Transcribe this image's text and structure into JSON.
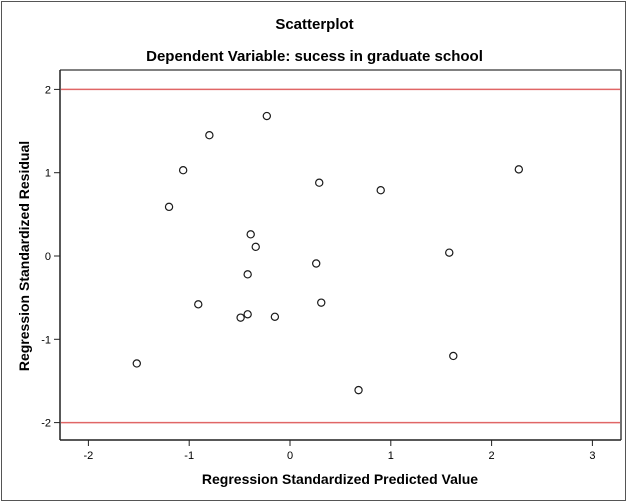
{
  "chart_data": {
    "type": "scatter",
    "title": "Scatterplot",
    "subtitle": "Dependent Variable: sucess in graduate school",
    "xlabel": "Regression Standardized Predicted Value",
    "ylabel": "Regression Standardized Residual",
    "xlim": [
      -2.28,
      3.3
    ],
    "ylim": [
      -2.22,
      2.23
    ],
    "x_ticks": [
      -2,
      -1,
      0,
      1,
      2,
      3
    ],
    "y_ticks": [
      -2,
      -1,
      0,
      1,
      2
    ],
    "grid": false,
    "reference_lines": [
      {
        "axis": "y",
        "value": 2,
        "color": "#e06666"
      },
      {
        "axis": "y",
        "value": -2,
        "color": "#e06666"
      }
    ],
    "marker": "open-circle",
    "points": [
      {
        "x": -0.23,
        "y": 1.68
      },
      {
        "x": -0.8,
        "y": 1.45
      },
      {
        "x": -1.06,
        "y": 1.03
      },
      {
        "x": -1.2,
        "y": 0.59
      },
      {
        "x": 0.29,
        "y": 0.88
      },
      {
        "x": 0.9,
        "y": 0.79
      },
      {
        "x": 2.27,
        "y": 1.04
      },
      {
        "x": -0.39,
        "y": 0.26
      },
      {
        "x": -0.34,
        "y": 0.11
      },
      {
        "x": 1.58,
        "y": 0.04
      },
      {
        "x": 0.26,
        "y": -0.09
      },
      {
        "x": -0.42,
        "y": -0.22
      },
      {
        "x": 0.31,
        "y": -0.56
      },
      {
        "x": -0.91,
        "y": -0.58
      },
      {
        "x": -0.42,
        "y": -0.7
      },
      {
        "x": -0.49,
        "y": -0.74
      },
      {
        "x": -0.15,
        "y": -0.73
      },
      {
        "x": 1.62,
        "y": -1.2
      },
      {
        "x": -1.52,
        "y": -1.29
      },
      {
        "x": 0.68,
        "y": -1.61
      }
    ]
  }
}
